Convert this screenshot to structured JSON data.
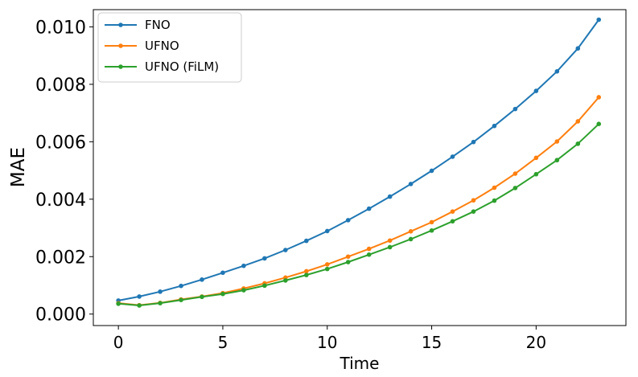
{
  "chart_data": {
    "type": "line",
    "title": "",
    "xlabel": "Time",
    "ylabel": "MAE",
    "xlim": [
      -1.2,
      24.3
    ],
    "ylim": [
      -0.0004,
      0.0106
    ],
    "xticks": [
      0,
      5,
      10,
      15,
      20
    ],
    "xtick_labels": [
      "0",
      "5",
      "10",
      "15",
      "20"
    ],
    "yticks": [
      0.0,
      0.002,
      0.004,
      0.006,
      0.008,
      0.01
    ],
    "ytick_labels": [
      "0.000",
      "0.002",
      "0.004",
      "0.006",
      "0.008",
      "0.010"
    ],
    "grid": false,
    "legend_position": "top-left",
    "x": [
      0,
      1,
      2,
      3,
      4,
      5,
      6,
      7,
      8,
      9,
      10,
      11,
      12,
      13,
      14,
      15,
      16,
      17,
      18,
      19,
      20,
      21,
      22,
      23
    ],
    "series": [
      {
        "name": "FNO",
        "color": "#1f77b4",
        "values": [
          0.00047,
          0.00061,
          0.00078,
          0.00098,
          0.0012,
          0.00144,
          0.00168,
          0.00194,
          0.00223,
          0.00255,
          0.00289,
          0.00327,
          0.00367,
          0.00409,
          0.00453,
          0.00499,
          0.00548,
          0.00599,
          0.00655,
          0.00714,
          0.00777,
          0.00845,
          0.00925,
          0.01025
        ]
      },
      {
        "name": "UFNO",
        "color": "#ff7f0e",
        "values": [
          0.00038,
          0.00031,
          0.00039,
          0.00051,
          0.00061,
          0.00073,
          0.00089,
          0.00107,
          0.00127,
          0.00149,
          0.00173,
          0.002,
          0.00227,
          0.00256,
          0.00288,
          0.0032,
          0.00357,
          0.00396,
          0.0044,
          0.00489,
          0.00544,
          0.00601,
          0.00671,
          0.00755
        ]
      },
      {
        "name": "UFNO (FiLM)",
        "color": "#2ca02c",
        "values": [
          0.00036,
          0.0003,
          0.00038,
          0.00049,
          0.0006,
          0.0007,
          0.00083,
          0.00099,
          0.00117,
          0.00136,
          0.00157,
          0.00181,
          0.00207,
          0.00233,
          0.00261,
          0.00291,
          0.00323,
          0.00357,
          0.00395,
          0.00439,
          0.00487,
          0.00536,
          0.00593,
          0.00662
        ]
      }
    ]
  }
}
